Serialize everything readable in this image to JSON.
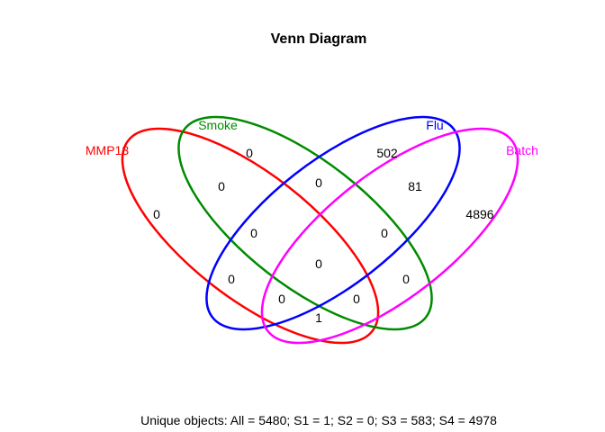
{
  "title": "Venn Diagram",
  "sets": [
    {
      "key": "s1",
      "name": "MMP13",
      "color": "#ff0000"
    },
    {
      "key": "s2",
      "name": "Smoke",
      "color": "#008b00"
    },
    {
      "key": "s3",
      "name": "Flu",
      "color": "#0000ff"
    },
    {
      "key": "s4",
      "name": "Batch",
      "color": "#ff00ff"
    }
  ],
  "regions": {
    "only_mmp13": "0",
    "only_smoke": "0",
    "only_flu": "502",
    "only_batch": "4896",
    "mmp13_smoke": "0",
    "smoke_flu": "0",
    "flu_batch": "81",
    "mmp13_flu": "0",
    "smoke_batch": "0",
    "mmp13_batch": "1",
    "mmp13_smoke_flu": "0",
    "smoke_flu_batch": "0",
    "all_four": "0",
    "mmp13_flu_batch": "0",
    "mmp13_smoke_batch": "0"
  },
  "summary": "Unique objects: All = 5480; S1 = 1; S2 = 0; S3 = 583; S4 = 4978"
}
